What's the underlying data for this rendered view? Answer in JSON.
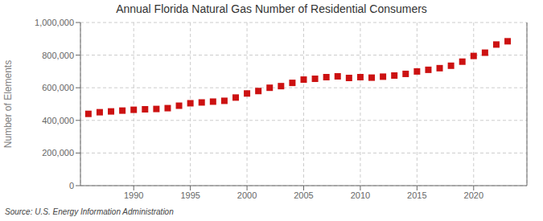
{
  "chart_data": {
    "type": "scatter",
    "title": "Annual Florida Natural Gas Number of Residential Consumers",
    "y_label": "Number of Elements",
    "annotation": "Source: U.S. Energy Information Administration",
    "x": [
      1986,
      1987,
      1988,
      1989,
      1990,
      1991,
      1992,
      1993,
      1994,
      1995,
      1996,
      1997,
      1998,
      1999,
      2000,
      2001,
      2002,
      2003,
      2004,
      2005,
      2006,
      2007,
      2008,
      2009,
      2010,
      2011,
      2012,
      2013,
      2014,
      2015,
      2016,
      2017,
      2018,
      2019,
      2020,
      2021,
      2022,
      2023
    ],
    "values": [
      440000,
      450000,
      455000,
      460000,
      465000,
      468000,
      470000,
      475000,
      490000,
      505000,
      510000,
      515000,
      520000,
      540000,
      565000,
      580000,
      600000,
      610000,
      630000,
      650000,
      655000,
      665000,
      670000,
      660000,
      665000,
      662000,
      668000,
      675000,
      685000,
      700000,
      710000,
      720000,
      735000,
      760000,
      795000,
      815000,
      865000,
      885000
    ],
    "color": "#cc1111",
    "marker": "square",
    "xlim": [
      1985.3,
      2024.7
    ],
    "xticks": [
      1990,
      1995,
      2000,
      2005,
      2010,
      2015,
      2020
    ],
    "ylim": [
      0,
      1000000
    ],
    "yticks": [
      0,
      {
        "value": 200000,
        "label": "200,000"
      },
      {
        "value": 400000,
        "label": "400,000"
      },
      {
        "value": 600000,
        "label": "600,000"
      },
      {
        "value": 800000,
        "label": "800,000"
      },
      {
        "value": 1000000,
        "label": "1,000,000"
      }
    ],
    "grid": true
  }
}
